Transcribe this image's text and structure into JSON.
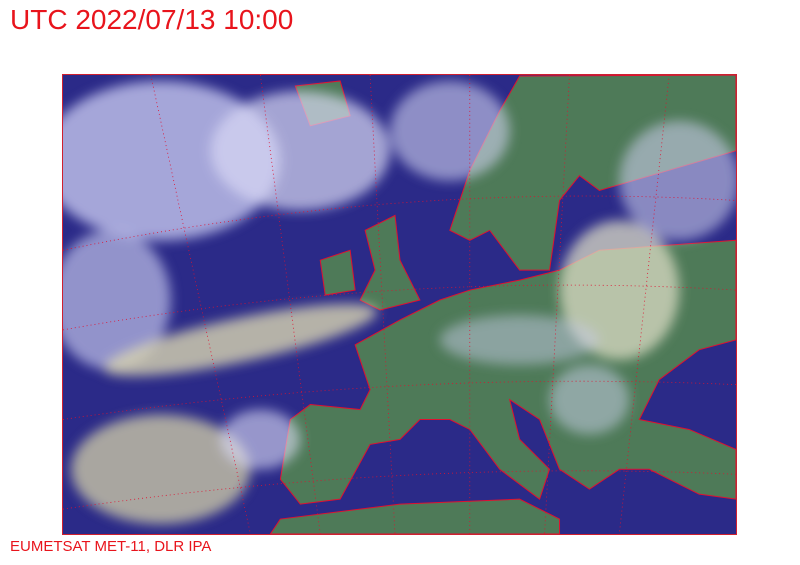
{
  "title": "UTC 2022/07/13 10:00",
  "credit": "EUMETSAT MET-11, DLR IPA",
  "colors": {
    "text": "#e8141c",
    "sea": "#2a2a8a",
    "land": "#4f7a5a",
    "cloud": "#c8c8f0",
    "coastline": "#e01030",
    "graticule": "#e01030"
  }
}
